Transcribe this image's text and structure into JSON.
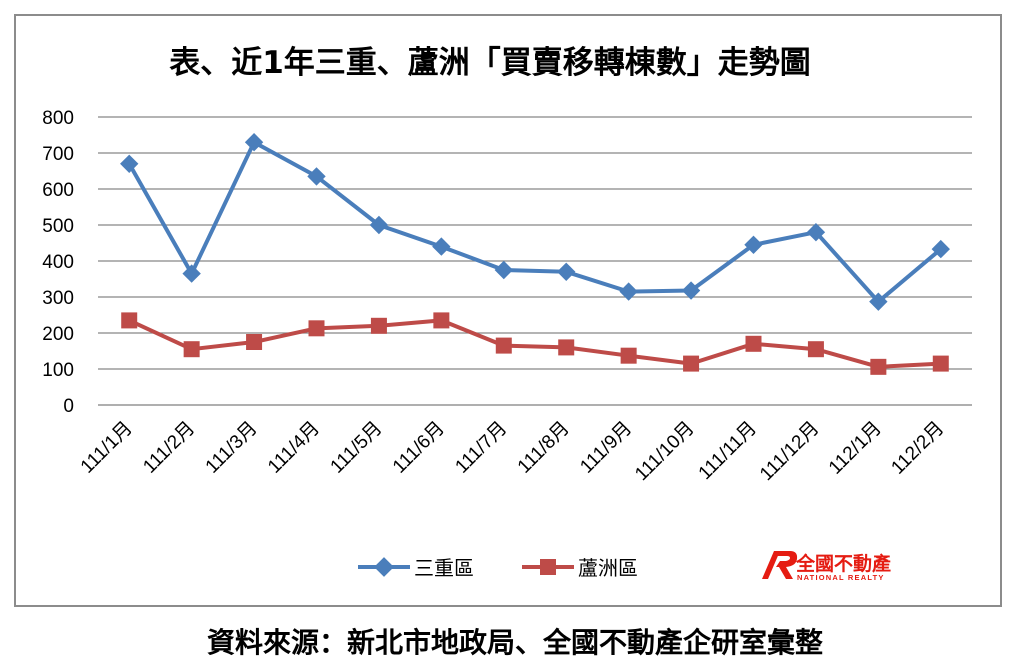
{
  "chart_data": {
    "type": "line",
    "title": "表、近1年三重、蘆洲「買賣移轉棟數」走勢圖",
    "categories": [
      "111/1月",
      "111/2月",
      "111/3月",
      "111/4月",
      "111/5月",
      "111/6月",
      "111/7月",
      "111/8月",
      "111/9月",
      "111/10月",
      "111/11月",
      "111/12月",
      "112/1月",
      "112/2月"
    ],
    "series": [
      {
        "name": "三重區",
        "color": "#4a7ebb",
        "marker": "diamond",
        "values": [
          670,
          365,
          730,
          635,
          500,
          440,
          375,
          370,
          315,
          318,
          445,
          480,
          287,
          433
        ]
      },
      {
        "name": "蘆洲區",
        "color": "#be4b48",
        "marker": "square",
        "values": [
          235,
          155,
          175,
          213,
          220,
          235,
          165,
          160,
          137,
          115,
          170,
          155,
          106,
          115
        ]
      }
    ],
    "ylim": [
      0,
      800
    ],
    "yticks": [
      "0",
      "100",
      "200",
      "300",
      "400",
      "500",
      "600",
      "700",
      "800"
    ],
    "grid": true,
    "legend_position": "bottom"
  },
  "logo": {
    "main_text": "全國不動產",
    "sub_text": "NATIONAL REALTY",
    "color": "#e51c12"
  },
  "source_note": "資料來源：新北市地政局、全國不動產企研室彙整"
}
